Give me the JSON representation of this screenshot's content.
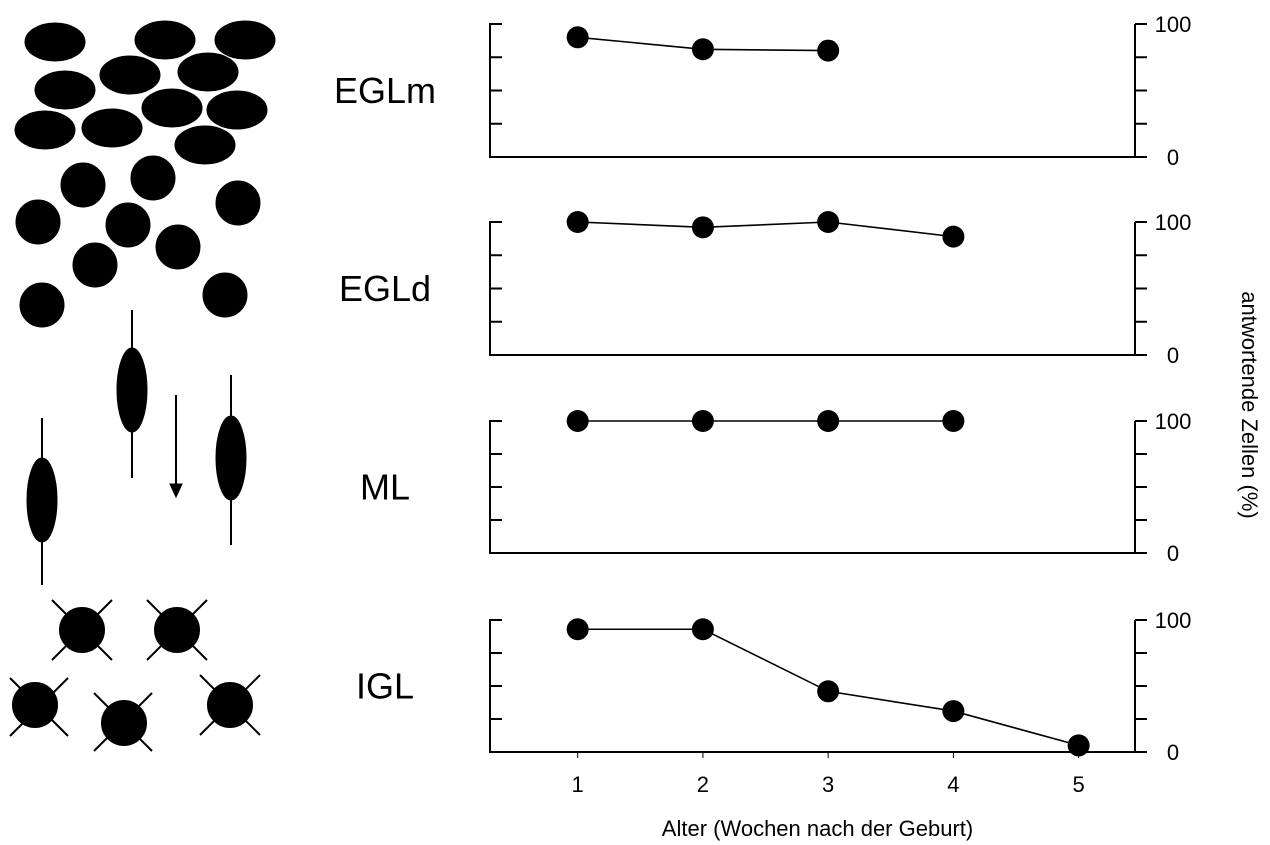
{
  "chart_data": [
    {
      "type": "line",
      "title": "EGLm",
      "x": [
        1,
        2,
        3
      ],
      "values": [
        90,
        81,
        80
      ],
      "color": "#000000",
      "xlim": [
        0.3,
        5.45
      ],
      "ylim": [
        0,
        100
      ],
      "yticks": [
        0,
        100
      ],
      "minor_yticks": [
        25,
        50,
        75
      ]
    },
    {
      "type": "line",
      "title": "EGLd",
      "x": [
        1,
        2,
        3,
        4
      ],
      "values": [
        100,
        96,
        100,
        89
      ],
      "color": "#000000",
      "xlim": [
        0.3,
        5.45
      ],
      "ylim": [
        0,
        100
      ],
      "yticks": [
        0,
        100
      ],
      "minor_yticks": [
        25,
        50,
        75
      ]
    },
    {
      "type": "line",
      "title": "ML",
      "x": [
        1,
        2,
        3,
        4
      ],
      "values": [
        100,
        100,
        100,
        100
      ],
      "color": "#000000",
      "xlim": [
        0.3,
        5.45
      ],
      "ylim": [
        0,
        100
      ],
      "yticks": [
        0,
        100
      ],
      "minor_yticks": [
        25,
        50,
        75
      ]
    },
    {
      "type": "line",
      "title": "IGL",
      "x": [
        1,
        2,
        3,
        4,
        5
      ],
      "values": [
        93,
        93,
        46,
        31,
        5
      ],
      "color": "#000000",
      "xlim": [
        0.3,
        5.45
      ],
      "ylim": [
        0,
        100
      ],
      "yticks": [
        0,
        100
      ],
      "minor_yticks": [
        25,
        50,
        75
      ],
      "xticks": [
        1,
        2,
        3,
        4,
        5
      ],
      "x_label": "Alter (Wochen nach der Geburt)"
    }
  ],
  "y_label": "antwortende Zellen (%)"
}
